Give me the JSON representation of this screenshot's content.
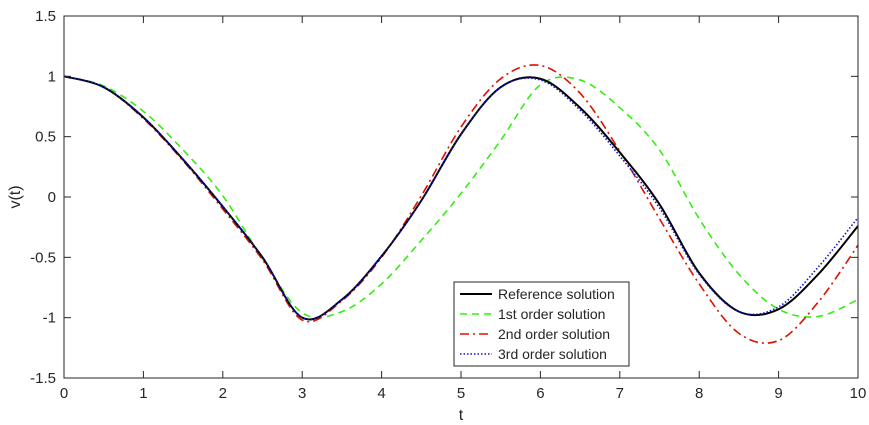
{
  "chart_data": {
    "type": "line",
    "title": "",
    "xlabel": "t",
    "ylabel": "v(t)",
    "xlim": [
      0,
      10
    ],
    "ylim": [
      -1.5,
      1.5
    ],
    "xticks": [
      0,
      1,
      2,
      3,
      4,
      5,
      6,
      7,
      8,
      9,
      10
    ],
    "xtick_labels": [
      "0",
      "1",
      "2",
      "3",
      "4",
      "5",
      "6",
      "7",
      "8",
      "9",
      "10"
    ],
    "yticks": [
      -1.5,
      -1,
      -0.5,
      0,
      0.5,
      1,
      1.5
    ],
    "ytick_labels": [
      "-1.5",
      "-1",
      "-0.5",
      "0",
      "0.5",
      "1",
      "1.5"
    ],
    "grid": false,
    "legend_position": "lower-right",
    "series": [
      {
        "name": "Reference solution",
        "color": "#000000",
        "style": "solid",
        "x": [
          0,
          0.5,
          1,
          1.5,
          2,
          2.5,
          3,
          3.5,
          4,
          4.5,
          5,
          5.5,
          6,
          6.5,
          7,
          7.5,
          8,
          8.5,
          9,
          9.5,
          10
        ],
        "y": [
          1,
          0.91,
          0.66,
          0.31,
          -0.08,
          -0.5,
          -1.0,
          -0.85,
          -0.49,
          -0.03,
          0.52,
          0.91,
          0.98,
          0.74,
          0.37,
          -0.06,
          -0.63,
          -0.95,
          -0.93,
          -0.64,
          -0.24
        ]
      },
      {
        "name": "1st order solution",
        "color": "#33ee11",
        "style": "dashed",
        "x": [
          0,
          0.5,
          1,
          1.5,
          2,
          2.5,
          3,
          3.5,
          4,
          4.5,
          5,
          5.5,
          6,
          6.5,
          7,
          7.5,
          8,
          8.5,
          9,
          9.5,
          10
        ],
        "y": [
          1,
          0.92,
          0.71,
          0.39,
          0.01,
          -0.51,
          -0.96,
          -0.95,
          -0.72,
          -0.36,
          0.03,
          0.47,
          0.93,
          0.97,
          0.74,
          0.39,
          -0.18,
          -0.64,
          -0.93,
          -0.99,
          -0.85
        ]
      },
      {
        "name": "2nd order solution",
        "color": "#dd1100",
        "style": "dashdot",
        "x": [
          0,
          0.5,
          1,
          1.5,
          2,
          2.5,
          3,
          3.5,
          4,
          4.5,
          5,
          5.5,
          6,
          6.5,
          7,
          7.5,
          8,
          8.5,
          9,
          9.5,
          10
        ],
        "y": [
          1,
          0.91,
          0.65,
          0.3,
          -0.1,
          -0.52,
          -1.02,
          -0.86,
          -0.5,
          0.01,
          0.58,
          0.98,
          1.09,
          0.86,
          0.38,
          -0.18,
          -0.72,
          -1.13,
          -1.19,
          -0.87,
          -0.4
        ]
      },
      {
        "name": "3rd order solution",
        "color": "#1111cc",
        "style": "dotted",
        "x": [
          0,
          0.5,
          1,
          1.5,
          2,
          2.5,
          3,
          3.5,
          4,
          4.5,
          5,
          5.5,
          6,
          6.5,
          7,
          7.5,
          8,
          8.5,
          9,
          9.5,
          10
        ],
        "y": [
          1,
          0.91,
          0.66,
          0.31,
          -0.08,
          -0.5,
          -1.0,
          -0.85,
          -0.49,
          -0.03,
          0.52,
          0.91,
          0.97,
          0.72,
          0.34,
          -0.09,
          -0.64,
          -0.95,
          -0.91,
          -0.58,
          -0.17
        ]
      }
    ]
  }
}
